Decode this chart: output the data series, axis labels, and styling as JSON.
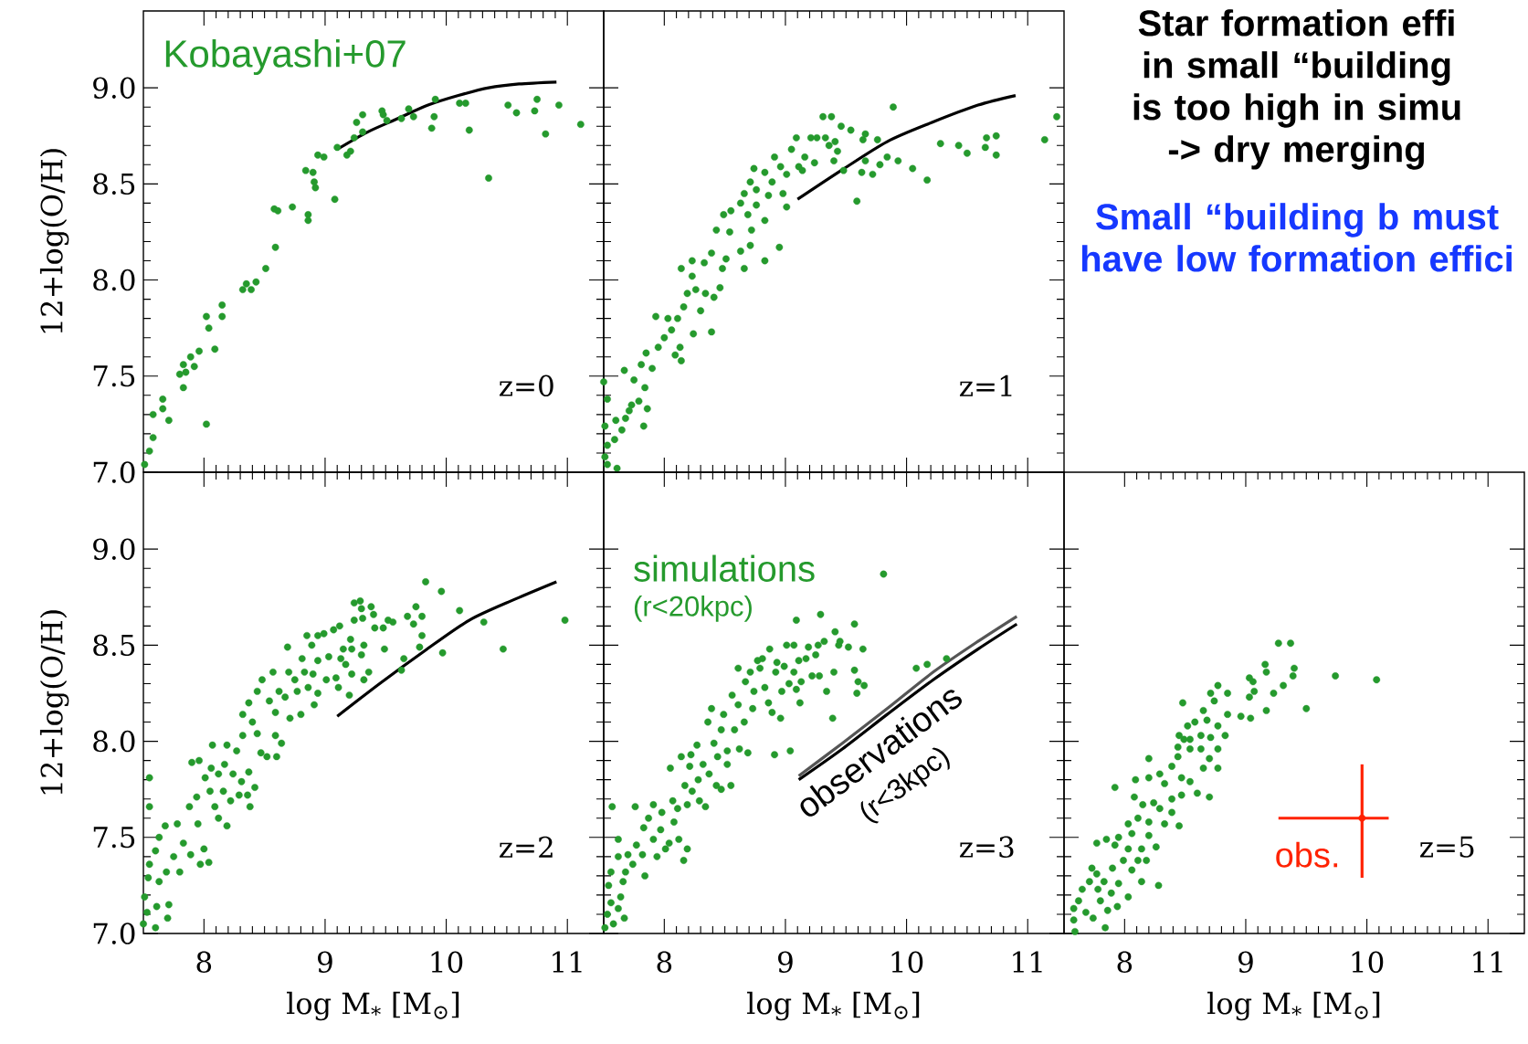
{
  "chart_data": [
    {
      "type": "scatter",
      "title": "z=0",
      "ylabel": "12+log(O/H)",
      "xlim": [
        7.5,
        11.3
      ],
      "ylim": [
        7.0,
        9.4
      ],
      "xticks": [
        8,
        9,
        10,
        11
      ],
      "yticks": [
        {
          "value": 7,
          "label": "7.0"
        },
        7.5,
        {
          "value": 8,
          "label": "8.0"
        },
        8.5,
        {
          "value": 9,
          "label": "9.0"
        }
      ],
      "tick_labels": "y",
      "annotations": [
        "Kobayashi+07"
      ],
      "series": [
        {
          "type": "scatter",
          "marker": "circle",
          "color": "#259a2d",
          "x": [
            7.55,
            7.51,
            7.58,
            7.58,
            7.66,
            7.66,
            7.71,
            7.8,
            7.83,
            7.83,
            7.85,
            7.89,
            7.92,
            7.96,
            8.02,
            8.02,
            8.04,
            8.09,
            8.15,
            8.15,
            8.32,
            8.35,
            8.39,
            8.43,
            8.51,
            8.59,
            8.58,
            8.61,
            8.73,
            8.86,
            8.86,
            8.84,
            8.9,
            8.91,
            8.92,
            8.94,
            8.99,
            9.08,
            9.1,
            9.18,
            9.21,
            9.24,
            9.26,
            9.31,
            9.31,
            9.47,
            9.48,
            9.51,
            9.63,
            9.69,
            9.73,
            9.88,
            9.9,
            9.91,
            10.11,
            10.16,
            10.19,
            10.35,
            10.51,
            10.58,
            10.73,
            10.75,
            10.82,
            10.93,
            11.11
          ],
          "values": [
            7.11,
            7.04,
            7.3,
            7.18,
            7.38,
            7.33,
            7.27,
            7.51,
            7.56,
            7.44,
            7.52,
            7.6,
            7.55,
            7.63,
            7.81,
            7.25,
            7.75,
            7.64,
            7.87,
            7.81,
            7.95,
            7.98,
            7.95,
            7.99,
            8.06,
            8.17,
            8.37,
            8.36,
            8.38,
            8.34,
            8.31,
            8.57,
            8.56,
            8.51,
            8.48,
            8.65,
            8.64,
            8.42,
            8.69,
            8.65,
            8.67,
            8.74,
            8.82,
            8.86,
            8.77,
            8.88,
            8.86,
            8.83,
            8.84,
            8.89,
            8.85,
            8.79,
            8.85,
            8.94,
            8.92,
            8.92,
            8.78,
            8.53,
            8.91,
            8.87,
            8.88,
            8.94,
            8.76,
            8.91,
            8.81
          ]
        },
        {
          "type": "line",
          "color": "#000000",
          "x": [
            9.1,
            9.35,
            9.6,
            9.85,
            10.1,
            10.35,
            10.6,
            10.91
          ],
          "values": [
            8.68,
            8.77,
            8.84,
            8.91,
            8.96,
            9.0,
            9.02,
            9.03
          ]
        }
      ]
    },
    {
      "type": "scatter",
      "title": "z=1",
      "xlim": [
        7.5,
        11.3
      ],
      "ylim": [
        7.0,
        9.4
      ],
      "xticks": [
        8,
        9,
        10,
        11
      ],
      "yticks": [
        7,
        7.5,
        8,
        8.5,
        9
      ],
      "tick_labels": false,
      "series": [
        {
          "type": "scatter",
          "marker": "circle",
          "color": "#259a2d",
          "x": [
            7.5,
            7.53,
            7.51,
            7.53,
            7.51,
            7.53,
            7.61,
            7.59,
            7.65,
            7.6,
            7.68,
            7.71,
            7.73,
            7.83,
            7.86,
            7.79,
            7.84,
            7.75,
            7.67,
            7.81,
            7.85,
            7.9,
            7.95,
            8.0,
            8.06,
            8.09,
            8.14,
            8.13,
            7.93,
            8.03,
            8.11,
            8.16,
            8.24,
            8.3,
            8.19,
            8.26,
            8.34,
            8.23,
            8.33,
            8.39,
            8.14,
            8.23,
            8.39,
            8.41,
            8.46,
            8.48,
            8.51,
            8.43,
            8.49,
            8.54,
            8.55,
            8.63,
            8.63,
            8.66,
            8.71,
            8.72,
            8.69,
            8.76,
            8.83,
            8.83,
            8.66,
            8.71,
            8.76,
            8.86,
            8.83,
            8.89,
            8.95,
            8.98,
            9.01,
            8.74,
            8.91,
            8.96,
            9.01,
            9.05,
            9.09,
            9.11,
            9.14,
            9.16,
            9.21,
            9.24,
            9.26,
            9.31,
            9.38,
            9.33,
            9.36,
            9.41,
            9.43,
            9.4,
            9.46,
            9.54,
            9.48,
            9.59,
            9.63,
            9.66,
            9.64,
            9.66,
            9.72,
            9.76,
            9.78,
            9.84,
            9.89,
            9.93,
            10.05,
            10.17,
            10.28,
            10.43,
            10.5,
            10.65,
            10.66,
            10.74,
            10.74,
            11.14,
            11.24
          ],
          "values": [
            7.47,
            7.38,
            7.24,
            7.14,
            7.08,
            7.04,
            7.02,
            7.17,
            7.22,
            7.27,
            7.28,
            7.32,
            7.35,
            7.24,
            7.33,
            7.37,
            7.44,
            7.48,
            7.53,
            7.56,
            7.62,
            7.54,
            7.65,
            7.7,
            7.74,
            7.61,
            7.58,
            7.65,
            7.81,
            7.8,
            7.8,
            7.86,
            7.72,
            7.84,
            7.93,
            7.95,
            7.93,
            8.02,
            8.09,
            8.14,
            8.06,
            8.1,
            7.73,
            7.91,
            7.96,
            8.06,
            8.11,
            8.26,
            8.34,
            8.25,
            8.36,
            8.4,
            8.15,
            8.06,
            8.18,
            8.26,
            8.34,
            8.39,
            8.31,
            8.1,
            8.45,
            8.51,
            8.47,
            8.44,
            8.56,
            8.51,
            8.17,
            8.45,
            8.38,
            8.58,
            8.64,
            8.59,
            8.55,
            8.68,
            8.74,
            8.59,
            8.57,
            8.64,
            8.74,
            8.61,
            8.74,
            8.85,
            8.85,
            8.74,
            8.7,
            8.72,
            8.67,
            8.62,
            8.8,
            8.78,
            8.57,
            8.41,
            8.56,
            8.62,
            8.73,
            8.76,
            8.55,
            8.73,
            8.6,
            8.64,
            8.9,
            8.62,
            8.58,
            8.52,
            8.71,
            8.7,
            8.66,
            8.69,
            8.74,
            8.75,
            8.65,
            8.73,
            8.85
          ]
        },
        {
          "type": "line",
          "color": "#000000",
          "x": [
            9.1,
            9.46,
            9.84,
            10.21,
            10.59,
            10.9
          ],
          "values": [
            8.42,
            8.57,
            8.72,
            8.82,
            8.91,
            8.96
          ]
        }
      ]
    },
    {
      "type": "scatter",
      "title": "z=2",
      "xlabel": "log M$_{*}$ [M$_{⊙}$]",
      "ylabel": "12+log(O/H)",
      "xlim": [
        7.5,
        11.3
      ],
      "ylim": [
        7.0,
        9.4
      ],
      "xticks": [
        8,
        9,
        10,
        11
      ],
      "yticks": [
        {
          "value": 7,
          "label": "7.0"
        },
        7.5,
        {
          "value": 8,
          "label": "8.0"
        },
        8.5,
        {
          "value": 9,
          "label": "9.0"
        }
      ],
      "series": [
        {
          "type": "scatter",
          "marker": "circle",
          "color": "#259a2d",
          "x": [
            7.5,
            7.53,
            7.51,
            7.54,
            7.55,
            7.55,
            7.55,
            7.61,
            7.63,
            7.69,
            7.71,
            7.7,
            7.6,
            7.6,
            7.63,
            7.68,
            7.75,
            7.8,
            7.78,
            7.83,
            7.89,
            7.88,
            7.94,
            7.95,
            7.97,
            8.04,
            8.0,
            8.05,
            8.09,
            8.12,
            8.19,
            7.9,
            7.96,
            8.01,
            8.06,
            8.07,
            8.12,
            8.16,
            8.17,
            8.19,
            8.22,
            8.24,
            8.27,
            8.29,
            8.31,
            8.36,
            8.37,
            8.38,
            8.42,
            8.32,
            8.32,
            8.37,
            8.4,
            8.44,
            8.44,
            8.48,
            8.47,
            8.52,
            8.6,
            8.54,
            8.57,
            8.59,
            8.59,
            8.64,
            8.62,
            8.67,
            8.69,
            8.7,
            8.71,
            8.75,
            8.77,
            8.8,
            8.81,
            8.83,
            8.86,
            8.9,
            8.89,
            8.85,
            8.91,
            8.94,
            8.94,
            8.94,
            8.99,
            9.01,
            9.03,
            9.07,
            9.11,
            9.09,
            9.12,
            9.13,
            9.15,
            9.17,
            9.2,
            9.21,
            9.22,
            9.22,
            9.24,
            9.24,
            9.29,
            9.3,
            9.31,
            9.3,
            9.32,
            9.32,
            9.36,
            9.38,
            9.4,
            9.41,
            9.48,
            9.49,
            9.52,
            9.56,
            9.65,
            9.63,
            9.68,
            9.73,
            9.75,
            9.8,
            9.8,
            9.78,
            9.83,
            9.96,
            9.97,
            10.11,
            10.31,
            10.47,
            10.98
          ],
          "values": [
            7.05,
            7.11,
            7.19,
            7.29,
            7.36,
            7.66,
            7.81,
            7.14,
            7.27,
            7.32,
            7.15,
            7.08,
            7.03,
            7.43,
            7.5,
            7.56,
            7.4,
            7.32,
            7.57,
            7.47,
            7.41,
            7.66,
            7.71,
            7.57,
            7.36,
            7.37,
            7.44,
            7.74,
            7.66,
            7.6,
            7.56,
            7.89,
            7.9,
            7.81,
            7.86,
            7.98,
            7.83,
            7.74,
            7.88,
            7.98,
            7.69,
            7.83,
            7.95,
            7.72,
            7.79,
            7.72,
            7.84,
            7.66,
            7.76,
            8.03,
            8.14,
            8.2,
            8.1,
            8.04,
            8.26,
            8.32,
            7.94,
            7.92,
            7.92,
            8.21,
            8.36,
            8.15,
            8.03,
            7.99,
            8.26,
            8.23,
            8.49,
            8.36,
            8.12,
            8.32,
            8.26,
            8.14,
            8.43,
            8.36,
            8.28,
            8.35,
            8.5,
            8.55,
            8.19,
            8.25,
            8.42,
            8.55,
            8.56,
            8.32,
            8.44,
            8.58,
            8.28,
            8.33,
            8.6,
            8.43,
            8.48,
            8.4,
            8.24,
            8.53,
            8.35,
            8.48,
            8.63,
            8.72,
            8.73,
            8.69,
            8.64,
            8.45,
            8.5,
            8.32,
            8.36,
            8.7,
            8.66,
            8.59,
            8.59,
            8.48,
            8.63,
            8.62,
            8.43,
            8.37,
            8.65,
            8.61,
            8.7,
            8.65,
            8.55,
            8.49,
            8.83,
            8.78,
            8.46,
            8.68,
            8.62,
            8.48,
            8.63
          ]
        },
        {
          "type": "line",
          "color": "#000000",
          "x": [
            9.1,
            9.45,
            9.82,
            10.19,
            10.57,
            10.91
          ],
          "values": [
            8.13,
            8.3,
            8.47,
            8.63,
            8.74,
            8.83
          ]
        }
      ]
    },
    {
      "type": "scatter",
      "title": "z=3",
      "xlabel": "log M$_{*}$ [M$_{⊙}$]",
      "xlim": [
        7.5,
        11.3
      ],
      "ylim": [
        7.0,
        9.4
      ],
      "xticks": [
        8,
        9,
        10,
        11
      ],
      "yticks": [
        7,
        7.5,
        8,
        8.5,
        9
      ],
      "tick_labels": "x",
      "annotations": [
        "simulations",
        "(r<20kpc)",
        "observations",
        "(r<3kpc)"
      ],
      "series": [
        {
          "type": "scatter",
          "marker": "circle",
          "color": "#259a2d",
          "x": [
            7.51,
            7.53,
            7.56,
            7.54,
            7.56,
            7.57,
            7.58,
            7.62,
            7.64,
            7.67,
            7.66,
            7.68,
            7.62,
            7.62,
            7.7,
            7.74,
            7.76,
            7.77,
            7.82,
            7.83,
            7.84,
            7.87,
            7.91,
            7.91,
            7.94,
            7.97,
            7.98,
            8.01,
            8.04,
            8.05,
            8.07,
            8.08,
            8.11,
            8.12,
            8.14,
            8.16,
            8.17,
            8.19,
            8.19,
            8.21,
            8.22,
            8.23,
            8.27,
            8.28,
            8.29,
            8.32,
            8.34,
            8.36,
            8.37,
            8.39,
            8.41,
            8.43,
            8.44,
            8.47,
            8.47,
            8.49,
            8.52,
            8.52,
            8.55,
            8.56,
            8.58,
            8.61,
            8.61,
            8.62,
            8.66,
            8.67,
            8.69,
            8.71,
            8.73,
            8.74,
            8.77,
            8.79,
            8.81,
            8.83,
            8.86,
            8.87,
            8.89,
            8.91,
            8.92,
            8.93,
            8.96,
            8.97,
            8.99,
            9.01,
            9.03,
            9.04,
            9.07,
            9.07,
            9.09,
            9.11,
            9.12,
            9.13,
            9.17,
            9.19,
            9.22,
            9.25,
            9.27,
            9.28,
            9.29,
            9.32,
            9.34,
            9.09,
            9.39,
            9.4,
            9.41,
            9.44,
            9.45,
            9.52,
            9.57,
            9.57,
            9.59,
            9.6,
            9.64,
            9.65,
            9.81,
            10.08,
            10.17,
            10.33
          ],
          "values": [
            7.03,
            7.1,
            7.16,
            7.25,
            7.32,
            7.66,
            7.05,
            7.13,
            7.19,
            7.08,
            7.27,
            7.32,
            7.4,
            7.49,
            7.41,
            7.36,
            7.66,
            7.46,
            7.41,
            7.55,
            7.3,
            7.6,
            7.49,
            7.67,
            7.4,
            7.54,
            7.63,
            7.44,
            7.47,
            7.86,
            7.69,
            7.58,
            7.65,
            7.49,
            7.92,
            7.38,
            7.77,
            7.44,
            7.67,
            7.87,
            7.93,
            7.74,
            7.98,
            7.8,
            7.69,
            7.88,
            7.66,
            8.1,
            7.83,
            8.17,
            7.99,
            7.77,
            7.92,
            7.75,
            8.06,
            8.14,
            7.88,
            7.95,
            7.77,
            8.24,
            8.06,
            8.19,
            8.38,
            7.96,
            8.1,
            8.31,
            7.94,
            8.36,
            8.17,
            8.26,
            8.42,
            8.38,
            8.43,
            8.28,
            8.2,
            8.48,
            8.15,
            7.93,
            8.36,
            8.41,
            8.12,
            8.26,
            8.39,
            8.5,
            8.3,
            7.95,
            8.5,
            8.36,
            8.27,
            8.42,
            8.2,
            8.31,
            8.43,
            8.49,
            8.34,
            8.45,
            8.5,
            8.34,
            8.66,
            8.52,
            8.26,
            8.63,
            8.12,
            8.36,
            8.57,
            8.5,
            8.52,
            8.49,
            8.61,
            8.37,
            8.25,
            8.31,
            8.48,
            8.29,
            8.87,
            8.38,
            8.4,
            8.43
          ]
        },
        {
          "type": "line",
          "color": "#000000",
          "x": [
            9.11,
            9.47,
            9.84,
            10.22,
            10.59,
            10.91
          ],
          "values": [
            7.8,
            7.96,
            8.14,
            8.32,
            8.48,
            8.61
          ]
        },
        {
          "type": "line",
          "color": "#555555",
          "x": [
            9.11,
            9.47,
            9.84,
            10.22,
            10.59,
            10.91
          ],
          "values": [
            7.82,
            7.99,
            8.17,
            8.36,
            8.52,
            8.65
          ]
        }
      ]
    },
    {
      "type": "scatter",
      "title": "z=5",
      "xlabel": "log M$_{*}$ [M$_{⊙}$]",
      "xlim": [
        7.5,
        11.3
      ],
      "ylim": [
        7.0,
        9.4
      ],
      "xticks": [
        8,
        9,
        10,
        11
      ],
      "yticks": [
        7,
        7.5,
        8,
        8.5,
        9
      ],
      "tick_labels": "x",
      "annotations": [
        "obs."
      ],
      "series": [
        {
          "type": "scatter",
          "marker": "circle",
          "color": "#259a2d",
          "x": [
            9.27,
            9.37,
            9.16,
            9.17,
            9.4,
            9.39,
            9.74,
            10.08,
            9.03,
            9.06,
            9.07,
            9.23,
            9.31,
            9.17,
            9.5,
            9.03,
            8.96,
            9.04,
            8.77,
            8.85,
            8.71,
            8.74,
            8.48,
            8.85,
            8.65,
            8.52,
            8.58,
            8.68,
            8.77,
            8.83,
            8.45,
            8.49,
            8.54,
            8.63,
            8.71,
            8.44,
            8.54,
            8.63,
            8.77,
            8.7,
            8.77,
            8.65,
            8.2,
            8.44,
            8.39,
            8.47,
            8.29,
            8.2,
            8.54,
            8.6,
            8.7,
            8.09,
            7.92,
            8.33,
            8.08,
            8.15,
            8.24,
            8.29,
            8.39,
            8.47,
            8.39,
            8.33,
            8.45,
            8.11,
            8.03,
            8.2,
            8.06,
            8.2,
            7.95,
            7.85,
            7.77,
            7.92,
            8.03,
            8.14,
            8.26,
            8.11,
            8.18,
            7.99,
            7.9,
            7.73,
            7.77,
            8.06,
            8.14,
            8.28,
            7.71,
            7.83,
            7.95,
            7.65,
            7.78,
            7.89,
            8.03,
            7.62,
            7.8,
            7.94,
            7.58,
            7.68,
            7.86,
            7.58,
            7.74,
            7.84,
            7.59
          ],
          "values": [
            8.51,
            8.51,
            8.4,
            8.36,
            8.38,
            8.34,
            8.34,
            8.32,
            8.33,
            8.31,
            8.26,
            8.25,
            8.29,
            8.16,
            8.17,
            8.23,
            8.13,
            8.12,
            8.29,
            8.25,
            8.25,
            8.21,
            8.2,
            8.14,
            8.16,
            8.08,
            8.1,
            8.11,
            8.08,
            8.03,
            8.03,
            8.01,
            8.01,
            8.03,
            8.02,
            7.97,
            7.96,
            7.96,
            7.96,
            7.91,
            7.86,
            7.86,
            7.91,
            7.92,
            7.87,
            7.81,
            7.83,
            7.81,
            7.79,
            7.73,
            7.71,
            7.8,
            7.76,
            7.78,
            7.71,
            7.67,
            7.68,
            7.65,
            7.7,
            7.72,
            7.63,
            7.57,
            7.56,
            7.6,
            7.57,
            7.58,
            7.52,
            7.51,
            7.5,
            7.49,
            7.47,
            7.46,
            7.44,
            7.44,
            7.45,
            7.38,
            7.38,
            7.38,
            7.34,
            7.34,
            7.31,
            7.33,
            7.27,
            7.25,
            7.27,
            7.27,
            7.26,
            7.23,
            7.23,
            7.21,
            7.19,
            7.17,
            7.17,
            7.14,
            7.13,
            7.11,
            7.12,
            7.07,
            7.08,
            7.03,
            7.01
          ]
        },
        {
          "type": "scatter",
          "marker": "circle",
          "color": "#ff2200",
          "x": [
            9.96
          ],
          "values": [
            7.6
          ],
          "errors": [
            [
              7.29,
              7.88
            ]
          ],
          "xerrors": [
            [
              9.27,
              10.18
            ]
          ]
        }
      ]
    },
    {
      "type": "other",
      "title": "Star formation effi in small “building is too high in simu -> dry merging",
      "subtitle": "Small “building b must have low formation effici",
      "color": "#1638ff"
    }
  ]
}
